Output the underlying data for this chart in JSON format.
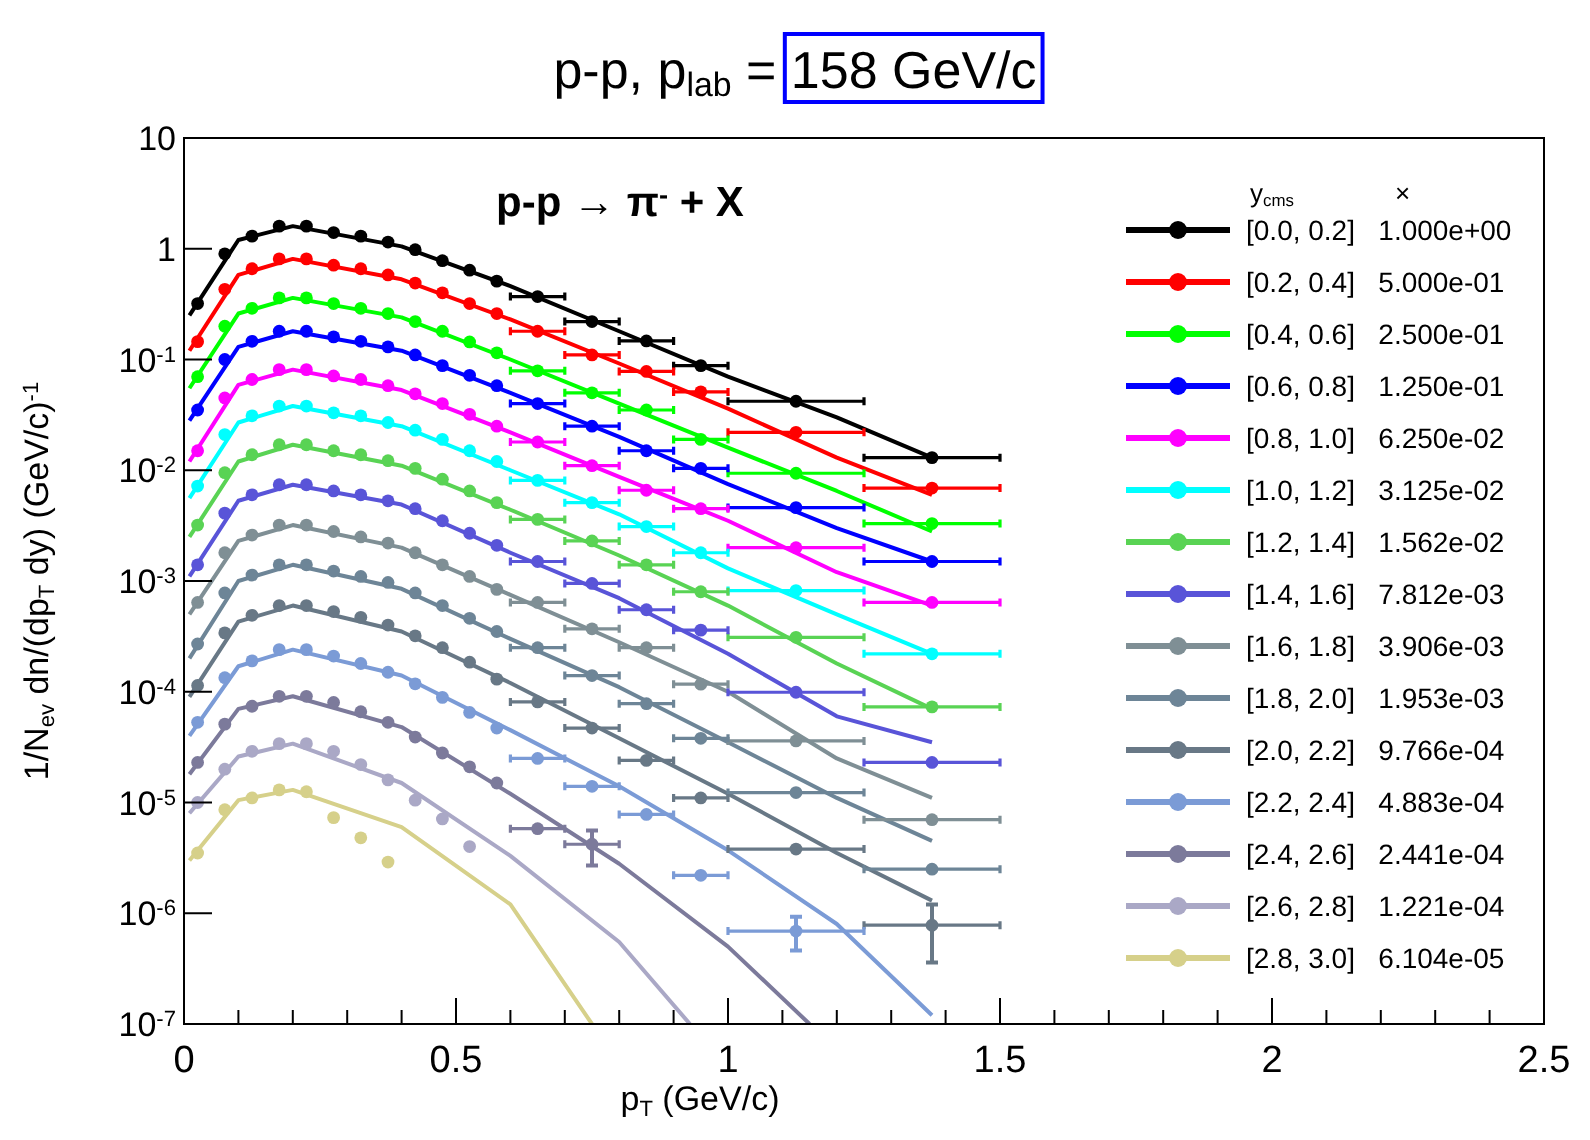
{
  "chart_data": {
    "type": "scatter",
    "title": "p-p, p$_{lab}$ = 158 GeV/c",
    "xlabel": "p$_{T}$ (GeV/c)",
    "ylabel": "1/N$_{ev}$ dn/(dp$_{T}$ dy) (GeV/c)$^{-1}$",
    "legend_title": "y$_{cms}$              ×",
    "annotations": [
      "p-p → π$^{-}$ + X"
    ],
    "log": "y",
    "marker": "circle",
    "legend": "right",
    "xlim": [
      0,
      2.5
    ],
    "ylim": [
      1e-07,
      10
    ],
    "xticks": [
      0,
      {
        "value": 0.1,
        "label": null
      },
      {
        "value": 0.2,
        "label": null
      },
      {
        "value": 0.3,
        "label": null
      },
      {
        "value": 0.4,
        "label": null
      },
      0.5,
      {
        "value": 0.6,
        "label": null
      },
      {
        "value": 0.7,
        "label": null
      },
      {
        "value": 0.8,
        "label": null
      },
      {
        "value": 0.9,
        "label": null
      },
      1,
      {
        "value": 1.1,
        "label": null
      },
      {
        "value": 1.2,
        "label": null
      },
      {
        "value": 1.3,
        "label": null
      },
      {
        "value": 1.4,
        "label": null
      },
      1.5,
      {
        "value": 1.6,
        "label": null
      },
      {
        "value": 1.7,
        "label": null
      },
      {
        "value": 1.8,
        "label": null
      },
      {
        "value": 1.9,
        "label": null
      },
      2,
      {
        "value": 2.1,
        "label": null
      },
      {
        "value": 2.2,
        "label": null
      },
      {
        "value": 2.3,
        "label": null
      },
      {
        "value": 2.4,
        "label": null
      },
      2.5
    ],
    "yticks": [
      {
        "value": 1e-07,
        "label": "10$^{-7}$"
      },
      {
        "value": 1e-06,
        "label": "10$^{-6}$"
      },
      {
        "value": 1e-05,
        "label": "10$^{-5}$"
      },
      {
        "value": 0.0001,
        "label": "10$^{-4}$"
      },
      {
        "value": 0.001,
        "label": "10$^{-3}$"
      },
      {
        "value": 0.01,
        "label": "10$^{-2}$"
      },
      {
        "value": 0.1,
        "label": "10$^{-1}$"
      },
      1,
      10
    ],
    "series": [
      {
        "name": "[0.0, 0.2]   1.000e+00",
        "color": "#000000",
        "x": [
          0.025,
          0.075,
          0.125,
          0.175,
          0.225,
          0.275,
          0.325,
          0.375,
          0.425,
          0.475,
          0.525,
          0.575,
          0.65,
          0.75,
          0.85,
          0.95,
          1.125,
          1.375
        ],
        "values": [
          0.32,
          0.9,
          1.3,
          1.6,
          1.6,
          1.4,
          1.3,
          1.15,
          0.98,
          0.78,
          0.64,
          0.51,
          0.37,
          0.22,
          0.147,
          0.088,
          0.042,
          0.013
        ],
        "xerrors": [
          null,
          null,
          null,
          null,
          null,
          null,
          null,
          null,
          null,
          null,
          null,
          null,
          0.05,
          0.05,
          0.05,
          0.05,
          0.125,
          0.125
        ]
      },
      {
        "name": "[0.2, 0.4]   5.000e-01",
        "color": "#ff0000",
        "x": [
          0.025,
          0.075,
          0.125,
          0.175,
          0.225,
          0.275,
          0.325,
          0.375,
          0.425,
          0.475,
          0.525,
          0.575,
          0.65,
          0.75,
          0.85,
          0.95,
          1.125,
          1.375
        ],
        "values": [
          0.145,
          0.43,
          0.66,
          0.81,
          0.81,
          0.71,
          0.66,
          0.58,
          0.49,
          0.4,
          0.32,
          0.26,
          0.18,
          0.11,
          0.078,
          0.051,
          0.022,
          0.0069
        ],
        "xerrors": [
          null,
          null,
          null,
          null,
          null,
          null,
          null,
          null,
          null,
          null,
          null,
          null,
          0.05,
          0.05,
          0.05,
          0.05,
          0.125,
          0.125
        ]
      },
      {
        "name": "[0.4, 0.6]   2.500e-01",
        "color": "#00ff00",
        "x": [
          0.025,
          0.075,
          0.125,
          0.175,
          0.225,
          0.275,
          0.325,
          0.375,
          0.425,
          0.475,
          0.525,
          0.575,
          0.65,
          0.75,
          0.85,
          0.95,
          1.125,
          1.375
        ],
        "values": [
          0.07,
          0.2,
          0.29,
          0.36,
          0.36,
          0.32,
          0.29,
          0.26,
          0.22,
          0.18,
          0.144,
          0.115,
          0.079,
          0.05,
          0.035,
          0.019,
          0.0094,
          0.0033
        ],
        "xerrors": [
          null,
          null,
          null,
          null,
          null,
          null,
          null,
          null,
          null,
          null,
          null,
          null,
          0.05,
          0.05,
          0.05,
          0.05,
          0.125,
          0.125
        ]
      },
      {
        "name": "[0.6, 0.8]   1.250e-01",
        "color": "#0000ff",
        "x": [
          0.025,
          0.075,
          0.125,
          0.175,
          0.225,
          0.275,
          0.325,
          0.375,
          0.425,
          0.475,
          0.525,
          0.575,
          0.65,
          0.75,
          0.85,
          0.95,
          1.125,
          1.375
        ],
        "values": [
          0.035,
          0.1,
          0.146,
          0.18,
          0.18,
          0.16,
          0.146,
          0.13,
          0.11,
          0.088,
          0.072,
          0.058,
          0.04,
          0.025,
          0.015,
          0.0104,
          0.0046,
          0.0015
        ],
        "xerrors": [
          null,
          null,
          null,
          null,
          null,
          null,
          null,
          null,
          null,
          null,
          null,
          null,
          0.05,
          0.05,
          0.05,
          0.05,
          0.125,
          0.125
        ]
      },
      {
        "name": "[0.8, 1.0]   6.250e-02",
        "color": "#ff00ff",
        "x": [
          0.025,
          0.075,
          0.125,
          0.175,
          0.225,
          0.275,
          0.325,
          0.375,
          0.425,
          0.475,
          0.525,
          0.575,
          0.65,
          0.75,
          0.85,
          0.95,
          1.125,
          1.375
        ],
        "values": [
          0.015,
          0.045,
          0.066,
          0.081,
          0.081,
          0.071,
          0.066,
          0.058,
          0.049,
          0.04,
          0.032,
          0.025,
          0.018,
          0.011,
          0.0066,
          0.0045,
          0.002,
          0.00064
        ],
        "xerrors": [
          null,
          null,
          null,
          null,
          null,
          null,
          null,
          null,
          null,
          null,
          null,
          null,
          0.05,
          0.05,
          0.05,
          0.05,
          0.125,
          0.125
        ]
      },
      {
        "name": "[1.0, 1.2]   3.125e-02",
        "color": "#00ffff",
        "x": [
          0.025,
          0.075,
          0.125,
          0.175,
          0.225,
          0.275,
          0.325,
          0.375,
          0.425,
          0.475,
          0.525,
          0.575,
          0.65,
          0.75,
          0.85,
          0.95,
          1.125,
          1.375
        ],
        "values": [
          0.0072,
          0.021,
          0.031,
          0.038,
          0.038,
          0.033,
          0.031,
          0.027,
          0.023,
          0.019,
          0.015,
          0.012,
          0.0081,
          0.0051,
          0.0031,
          0.0018,
          0.00082,
          0.00022
        ],
        "xerrors": [
          null,
          null,
          null,
          null,
          null,
          null,
          null,
          null,
          null,
          null,
          null,
          null,
          0.05,
          0.05,
          0.05,
          0.05,
          0.125,
          0.125
        ]
      },
      {
        "name": "[1.2, 1.4]   1.562e-02",
        "color": "#59d354",
        "x": [
          0.025,
          0.075,
          0.125,
          0.175,
          0.225,
          0.275,
          0.325,
          0.375,
          0.425,
          0.475,
          0.525,
          0.575,
          0.65,
          0.75,
          0.85,
          0.95,
          1.125,
          1.375
        ],
        "values": [
          0.0032,
          0.0095,
          0.0138,
          0.017,
          0.017,
          0.015,
          0.0138,
          0.0122,
          0.0104,
          0.0083,
          0.0065,
          0.0051,
          0.0036,
          0.0023,
          0.0014,
          0.0008,
          0.00031,
          7.3e-05
        ],
        "xerrors": [
          null,
          null,
          null,
          null,
          null,
          null,
          null,
          null,
          null,
          null,
          null,
          null,
          0.05,
          0.05,
          0.05,
          0.05,
          0.125,
          0.125
        ]
      },
      {
        "name": "[1.4, 1.6]   7.812e-03",
        "color": "#5954d8",
        "x": [
          0.025,
          0.075,
          0.125,
          0.175,
          0.225,
          0.275,
          0.325,
          0.375,
          0.425,
          0.475,
          0.525,
          0.575,
          0.65,
          0.75,
          0.85,
          0.95,
          1.125,
          1.375
        ],
        "values": [
          0.0014,
          0.0041,
          0.006,
          0.0074,
          0.0074,
          0.0065,
          0.006,
          0.0053,
          0.0045,
          0.0035,
          0.0027,
          0.0021,
          0.0015,
          0.00095,
          0.00055,
          0.00036,
          9.9e-05,
          2.3e-05
        ],
        "xerrors": [
          null,
          null,
          null,
          null,
          null,
          null,
          null,
          null,
          null,
          null,
          null,
          null,
          0.05,
          0.05,
          0.05,
          0.05,
          0.125,
          0.125
        ]
      },
      {
        "name": "[1.6, 1.8]   3.906e-03",
        "color": "#7f8f95",
        "x": [
          0.025,
          0.075,
          0.125,
          0.175,
          0.225,
          0.275,
          0.325,
          0.375,
          0.425,
          0.475,
          0.525,
          0.575,
          0.65,
          0.75,
          0.85,
          0.95,
          1.125,
          1.375
        ],
        "values": [
          0.00064,
          0.0018,
          0.0026,
          0.0032,
          0.0032,
          0.0028,
          0.0025,
          0.0022,
          0.0018,
          0.0014,
          0.0011,
          0.00084,
          0.00064,
          0.00037,
          0.00025,
          0.000117,
          3.6e-05,
          7e-06
        ],
        "xerrors": [
          null,
          null,
          null,
          null,
          null,
          null,
          null,
          null,
          null,
          null,
          null,
          null,
          0.05,
          0.05,
          0.05,
          0.05,
          0.125,
          0.125
        ]
      },
      {
        "name": "[1.8, 2.0]   1.953e-03",
        "color": "#6d8597",
        "x": [
          0.025,
          0.075,
          0.125,
          0.175,
          0.225,
          0.275,
          0.325,
          0.375,
          0.425,
          0.475,
          0.525,
          0.575,
          0.65,
          0.75,
          0.85,
          0.95,
          1.125,
          1.375
        ],
        "values": [
          0.00027,
          0.00078,
          0.00113,
          0.0014,
          0.0014,
          0.00123,
          0.0011,
          0.00097,
          0.00078,
          0.0006,
          0.00046,
          0.00035,
          0.00025,
          0.00014,
          7.8e-05,
          3.8e-05,
          1.23e-05,
          2.5e-06
        ],
        "xerrors": [
          null,
          null,
          null,
          null,
          null,
          null,
          null,
          null,
          null,
          null,
          null,
          null,
          0.05,
          0.05,
          0.05,
          0.05,
          0.125,
          0.125
        ]
      },
      {
        "name": "[2.0, 2.2]   9.766e-04",
        "color": "#687886",
        "x": [
          0.025,
          0.075,
          0.125,
          0.175,
          0.225,
          0.275,
          0.325,
          0.375,
          0.425,
          0.475,
          0.525,
          0.575,
          0.65,
          0.75,
          0.85,
          0.95,
          1.125,
          1.375
        ],
        "values": [
          0.000114,
          0.00034,
          0.00049,
          0.0006,
          0.0006,
          0.00053,
          0.00047,
          0.0004,
          0.00032,
          0.00025,
          0.000185,
          0.00013,
          8.1e-05,
          4.7e-05,
          2.4e-05,
          1.1e-05,
          3.8e-06,
          7.8e-07
        ],
        "xerrors": [
          null,
          null,
          null,
          null,
          null,
          null,
          null,
          null,
          null,
          null,
          null,
          null,
          0.05,
          0.05,
          0.05,
          0.05,
          0.125,
          0.125
        ],
        "errors": [
          null,
          null,
          null,
          null,
          null,
          null,
          null,
          null,
          null,
          null,
          null,
          null,
          null,
          null,
          null,
          null,
          null,
          [
            3.6e-07,
            1.2e-06
          ]
        ]
      },
      {
        "name": "[2.2, 2.4]   4.883e-04",
        "color": "#7b9bd6",
        "x": [
          0.025,
          0.075,
          0.125,
          0.175,
          0.225,
          0.275,
          0.325,
          0.375,
          0.425,
          0.475,
          0.525,
          0.575,
          0.65,
          0.75,
          0.85,
          0.95,
          1.125
        ],
        "values": [
          5.3e-05,
          0.000134,
          0.00019,
          0.00024,
          0.00024,
          0.00021,
          0.00018,
          0.00015,
          0.000118,
          8.9e-05,
          6.5e-05,
          4.7e-05,
          2.5e-05,
          1.4e-05,
          7.8e-06,
          2.2e-06,
          6.9e-07
        ],
        "xerrors": [
          null,
          null,
          null,
          null,
          null,
          null,
          null,
          null,
          null,
          null,
          null,
          null,
          0.05,
          0.05,
          0.05,
          0.05,
          0.125
        ],
        "errors": [
          null,
          null,
          null,
          null,
          null,
          null,
          null,
          null,
          null,
          null,
          null,
          null,
          null,
          null,
          null,
          null,
          [
            4.6e-07,
            9.3e-07
          ]
        ]
      },
      {
        "name": "[2.4, 2.6]   2.441e-04",
        "color": "#7c7a9b",
        "x": [
          0.025,
          0.075,
          0.125,
          0.175,
          0.225,
          0.275,
          0.325,
          0.375,
          0.425,
          0.475,
          0.525,
          0.575,
          0.65,
          0.75
        ],
        "values": [
          2.3e-05,
          5.1e-05,
          7.4e-05,
          9.1e-05,
          9.1e-05,
          8e-05,
          6.6e-05,
          5.3e-05,
          3.9e-05,
          2.8e-05,
          2.1e-05,
          1.5e-05,
          5.8e-06,
          4.2e-06
        ],
        "xerrors": [
          null,
          null,
          null,
          null,
          null,
          null,
          null,
          null,
          null,
          null,
          null,
          null,
          0.05,
          0.05
        ],
        "errors": [
          null,
          null,
          null,
          null,
          null,
          null,
          null,
          null,
          null,
          null,
          null,
          null,
          null,
          [
            2.7e-06,
            5.6e-06
          ]
        ]
      },
      {
        "name": "[2.6, 2.8]   1.221e-04",
        "color": "#aaa8c6",
        "x": [
          0.025,
          0.075,
          0.125,
          0.175,
          0.225,
          0.275,
          0.325,
          0.375,
          0.425,
          0.475,
          0.525
        ],
        "values": [
          1e-05,
          2e-05,
          2.9e-05,
          3.4e-05,
          3.4e-05,
          2.9e-05,
          2.2e-05,
          1.6e-05,
          1.05e-05,
          7.1e-06,
          4e-06
        ]
      },
      {
        "name": "[2.8, 3.0]   6.104e-05",
        "color": "#d6d08a",
        "x": [
          0.025,
          0.075,
          0.125,
          0.175,
          0.225,
          0.275,
          0.325,
          0.375
        ],
        "values": [
          3.5e-06,
          8.6e-06,
          1.1e-05,
          1.3e-05,
          1.25e-05,
          7.3e-06,
          4.8e-06,
          2.9e-06
        ]
      },
      {
        "type": "line",
        "marker": "none",
        "color": "#000000",
        "x": [
          0.01,
          0.1,
          0.2,
          0.4,
          0.6,
          0.8,
          1.0,
          1.2,
          1.375
        ],
        "values": [
          0.25,
          1.2,
          1.6,
          1.05,
          0.46,
          0.18,
          0.07,
          0.03,
          0.013
        ]
      },
      {
        "type": "line",
        "marker": "none",
        "color": "#ff0000",
        "x": [
          0.01,
          0.1,
          0.2,
          0.4,
          0.6,
          0.8,
          1.0,
          1.2,
          1.375
        ],
        "values": [
          0.12,
          0.58,
          0.81,
          0.53,
          0.23,
          0.092,
          0.036,
          0.013,
          0.006
        ]
      },
      {
        "type": "line",
        "marker": "none",
        "color": "#00ff00",
        "x": [
          0.01,
          0.1,
          0.2,
          0.4,
          0.6,
          0.8,
          1.0,
          1.2,
          1.375
        ],
        "values": [
          0.055,
          0.26,
          0.36,
          0.24,
          0.1,
          0.04,
          0.016,
          0.0065,
          0.0028
        ]
      },
      {
        "type": "line",
        "marker": "none",
        "color": "#0000ff",
        "x": [
          0.01,
          0.1,
          0.2,
          0.4,
          0.6,
          0.8,
          1.0,
          1.2,
          1.375
        ],
        "values": [
          0.028,
          0.13,
          0.18,
          0.12,
          0.05,
          0.02,
          0.0075,
          0.003,
          0.0015
        ]
      },
      {
        "type": "line",
        "marker": "none",
        "color": "#ff00ff",
        "x": [
          0.01,
          0.1,
          0.2,
          0.4,
          0.6,
          0.8,
          1.0,
          1.2,
          1.375
        ],
        "values": [
          0.012,
          0.059,
          0.081,
          0.053,
          0.022,
          0.0087,
          0.0035,
          0.0012,
          0.0006
        ]
      },
      {
        "type": "line",
        "marker": "none",
        "color": "#00ffff",
        "x": [
          0.01,
          0.1,
          0.2,
          0.4,
          0.6,
          0.8,
          1.0,
          1.2,
          1.375
        ],
        "values": [
          0.0056,
          0.027,
          0.038,
          0.025,
          0.01,
          0.004,
          0.0013,
          0.0005,
          0.00022
        ]
      },
      {
        "type": "line",
        "marker": "none",
        "color": "#59d354",
        "x": [
          0.01,
          0.1,
          0.2,
          0.4,
          0.6,
          0.8,
          1.0,
          1.2,
          1.375
        ],
        "values": [
          0.0025,
          0.012,
          0.017,
          0.011,
          0.0044,
          0.0017,
          0.0006,
          0.00018,
          7e-05
        ]
      },
      {
        "type": "line",
        "marker": "none",
        "color": "#5954d8",
        "x": [
          0.01,
          0.1,
          0.2,
          0.4,
          0.6,
          0.8,
          1.0,
          1.2,
          1.375
        ],
        "values": [
          0.0011,
          0.0053,
          0.0074,
          0.0049,
          0.0018,
          0.0007,
          0.00022,
          6e-05,
          3.5e-05
        ]
      },
      {
        "type": "line",
        "marker": "none",
        "color": "#7f8f95",
        "x": [
          0.01,
          0.1,
          0.2,
          0.4,
          0.6,
          0.8,
          1.0,
          1.2,
          1.375
        ],
        "values": [
          0.0005,
          0.0023,
          0.0032,
          0.002,
          0.00075,
          0.00028,
          0.0001,
          2.5e-05,
          1.1e-05
        ]
      },
      {
        "type": "line",
        "marker": "none",
        "color": "#6d8597",
        "x": [
          0.01,
          0.1,
          0.2,
          0.4,
          0.6,
          0.8,
          1.0,
          1.2,
          1.375
        ],
        "values": [
          0.0002,
          0.001,
          0.0014,
          0.00085,
          0.0003,
          0.00011,
          3.5e-05,
          1.1e-05,
          4.5e-06
        ]
      },
      {
        "type": "line",
        "marker": "none",
        "color": "#687886",
        "x": [
          0.01,
          0.1,
          0.2,
          0.4,
          0.6,
          0.8,
          1.0,
          1.2,
          1.375
        ],
        "values": [
          9e-05,
          0.00043,
          0.0006,
          0.00035,
          0.00012,
          3.8e-05,
          1.2e-05,
          3.5e-06,
          1.3e-06
        ]
      },
      {
        "type": "line",
        "marker": "none",
        "color": "#7b9bd6",
        "x": [
          0.01,
          0.1,
          0.2,
          0.4,
          0.6,
          0.8,
          1.0,
          1.2,
          1.375
        ],
        "values": [
          4e-05,
          0.00017,
          0.00024,
          0.00014,
          4.5e-05,
          1.4e-05,
          3.7e-06,
          8e-07,
          1.2e-07
        ]
      },
      {
        "type": "line",
        "marker": "none",
        "color": "#7c7a9b",
        "x": [
          0.01,
          0.1,
          0.2,
          0.4,
          0.6,
          0.8,
          1.0,
          1.15
        ],
        "values": [
          1.8e-05,
          7e-05,
          9.1e-05,
          4.8e-05,
          1.2e-05,
          2.8e-06,
          5e-07,
          1e-07
        ]
      },
      {
        "type": "line",
        "marker": "none",
        "color": "#aaa8c6",
        "x": [
          0.01,
          0.1,
          0.2,
          0.4,
          0.6,
          0.8,
          0.93
        ],
        "values": [
          8e-06,
          2.6e-05,
          3.4e-05,
          1.5e-05,
          3.3e-06,
          5.5e-07,
          1e-07
        ]
      },
      {
        "type": "line",
        "marker": "none",
        "color": "#d6d08a",
        "x": [
          0.01,
          0.1,
          0.2,
          0.4,
          0.6,
          0.75
        ],
        "values": [
          3e-06,
          1.05e-05,
          1.3e-05,
          6e-06,
          1.2e-06,
          1e-07
        ]
      }
    ]
  }
}
